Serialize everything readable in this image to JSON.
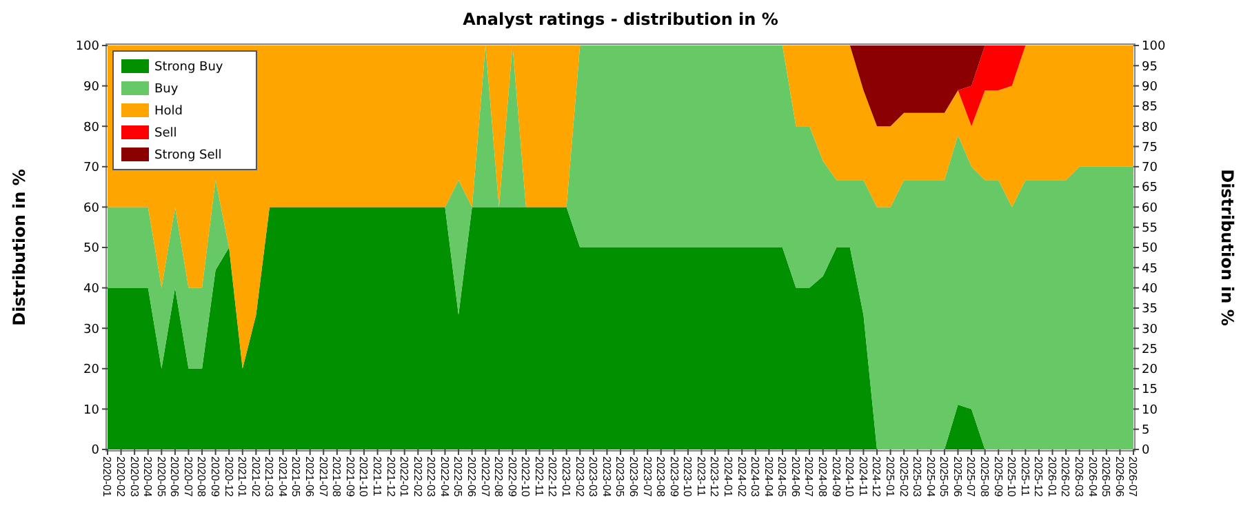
{
  "chart_data": {
    "type": "area",
    "title": "Analyst ratings - distribution in %",
    "ylabel": "Distribution in %",
    "y2label": "Distribution in %",
    "categories": [
      "2020-01",
      "2020-02",
      "2020-03",
      "2020-04",
      "2020-05",
      "2020-06",
      "2020-07",
      "2020-08",
      "2020-09",
      "2020-12",
      "2021-01",
      "2021-02",
      "2021-03",
      "2021-04",
      "2021-05",
      "2021-06",
      "2021-07",
      "2021-08",
      "2021-09",
      "2021-10",
      "2021-11",
      "2021-12",
      "2022-01",
      "2022-02",
      "2022-03",
      "2022-04",
      "2022-05",
      "2022-06",
      "2022-07",
      "2022-08",
      "2022-09",
      "2022-10",
      "2022-11",
      "2022-12",
      "2023-01",
      "2023-02",
      "2023-03",
      "2023-04",
      "2023-05",
      "2023-06",
      "2023-07",
      "2023-08",
      "2023-09",
      "2023-10",
      "2023-11",
      "2023-12",
      "2024-01",
      "2024-02",
      "2024-03",
      "2024-04",
      "2024-05",
      "2024-06",
      "2024-07",
      "2024-08",
      "2024-09",
      "2024-10",
      "2024-11",
      "2024-12",
      "2025-01",
      "2025-02",
      "2025-03",
      "2025-04",
      "2025-05",
      "2025-06",
      "2025-07",
      "2025-08",
      "2025-09",
      "2025-10",
      "2025-11",
      "2025-12",
      "2026-01",
      "2026-02",
      "2026-03",
      "2026-04",
      "2026-05",
      "2026-06",
      "2026-07"
    ],
    "stacked": true,
    "series": [
      {
        "name": "Strong Buy",
        "color": "#009000",
        "values": [
          40,
          40,
          40,
          40,
          20,
          40,
          20,
          20,
          44.4,
          50,
          20,
          33.3,
          60,
          60,
          60,
          60,
          60,
          60,
          60,
          60,
          60,
          60,
          60,
          60,
          60,
          60,
          33.3,
          60,
          60,
          60,
          60,
          60,
          60,
          60,
          60,
          50,
          50,
          50,
          50,
          50,
          50,
          50,
          50,
          50,
          50,
          50,
          50,
          50,
          50,
          50,
          50,
          40,
          40,
          42.9,
          50,
          50,
          33.3,
          0,
          0,
          0,
          0,
          0,
          0,
          11.1,
          10,
          0,
          0,
          0,
          0,
          0,
          0,
          0,
          0,
          0,
          0,
          0,
          0
        ]
      },
      {
        "name": "Buy",
        "color": "#66c966",
        "values": [
          20,
          20,
          20,
          20,
          20,
          20,
          20,
          20,
          22.3,
          0,
          0,
          0,
          0,
          0,
          0,
          0,
          0,
          0,
          0,
          0,
          0,
          0,
          0,
          0,
          0,
          0,
          33.4,
          0,
          40,
          0,
          40,
          0,
          0,
          0,
          0,
          50,
          50,
          50,
          50,
          50,
          50,
          50,
          50,
          50,
          50,
          50,
          50,
          50,
          50,
          50,
          50,
          40,
          40,
          28.5,
          16.7,
          16.7,
          33.4,
          60,
          60,
          66.7,
          66.7,
          66.7,
          66.7,
          66.7,
          60,
          66.7,
          66.7,
          60,
          66.7,
          66.7,
          66.7,
          66.7,
          70,
          70,
          70,
          70,
          70
        ]
      },
      {
        "name": "Hold",
        "color": "#ffa500",
        "values": [
          40,
          40,
          40,
          40,
          60,
          40,
          60,
          60,
          33.3,
          50,
          80,
          66.7,
          40,
          40,
          40,
          40,
          40,
          40,
          40,
          40,
          40,
          40,
          40,
          40,
          40,
          40,
          33.3,
          40,
          0,
          40,
          0,
          40,
          40,
          40,
          40,
          0,
          0,
          0,
          0,
          0,
          0,
          0,
          0,
          0,
          0,
          0,
          0,
          0,
          0,
          0,
          0,
          20,
          20,
          28.6,
          33.3,
          33.3,
          22.2,
          20,
          20,
          16.6,
          16.6,
          16.6,
          16.6,
          11.1,
          10,
          22.2,
          22.2,
          30,
          33.3,
          33.3,
          33.3,
          33.3,
          30,
          30,
          30,
          30,
          30
        ]
      },
      {
        "name": "Sell",
        "color": "#ff0000",
        "values": [
          null,
          null,
          null,
          null,
          null,
          null,
          null,
          null,
          null,
          null,
          null,
          null,
          null,
          null,
          null,
          null,
          null,
          null,
          null,
          null,
          null,
          null,
          null,
          null,
          null,
          null,
          null,
          null,
          null,
          null,
          null,
          null,
          null,
          null,
          null,
          null,
          null,
          null,
          null,
          null,
          null,
          null,
          null,
          null,
          null,
          null,
          null,
          null,
          null,
          null,
          null,
          null,
          null,
          null,
          null,
          null,
          null,
          null,
          null,
          null,
          null,
          null,
          null,
          0,
          10,
          11.1,
          11.1,
          10,
          0,
          null,
          null,
          null,
          null,
          null,
          null,
          null,
          null
        ]
      },
      {
        "name": "Strong Sell",
        "color": "#8b0000",
        "values": [
          null,
          null,
          null,
          null,
          null,
          null,
          null,
          null,
          null,
          null,
          null,
          null,
          null,
          null,
          null,
          null,
          null,
          null,
          null,
          null,
          null,
          null,
          null,
          null,
          null,
          null,
          null,
          null,
          null,
          null,
          null,
          null,
          null,
          null,
          null,
          null,
          null,
          null,
          null,
          null,
          null,
          null,
          null,
          null,
          null,
          null,
          null,
          null,
          null,
          null,
          null,
          null,
          null,
          null,
          null,
          0,
          11.1,
          20,
          20,
          16.7,
          16.7,
          16.7,
          16.7,
          11.1,
          10,
          0,
          null,
          null,
          null,
          null,
          null,
          null,
          null,
          null,
          null,
          null,
          null
        ]
      }
    ],
    "ylim": [
      0,
      100
    ],
    "yticks": [
      0,
      10,
      20,
      30,
      40,
      50,
      60,
      70,
      80,
      90,
      100
    ],
    "y2lim": [
      0,
      100
    ],
    "y2ticks": [
      0,
      5,
      10,
      15,
      20,
      25,
      30,
      35,
      40,
      45,
      50,
      55,
      60,
      65,
      70,
      75,
      80,
      85,
      90,
      95,
      100
    ],
    "grid": "y",
    "legend": "top left"
  }
}
